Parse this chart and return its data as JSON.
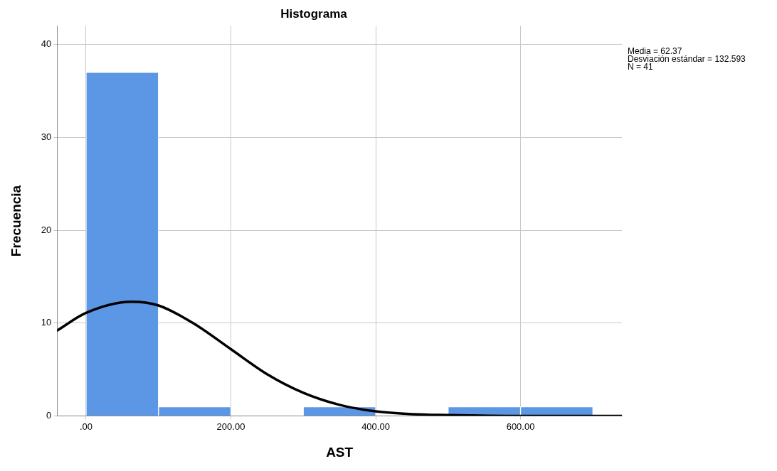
{
  "chart_data": {
    "type": "histogram",
    "title": "Histograma",
    "xlabel": "AST",
    "ylabel": "Frecuencia",
    "bins": [
      0,
      100,
      200,
      300,
      400,
      500,
      600,
      700
    ],
    "values": [
      37,
      1,
      0,
      1,
      0,
      1,
      1
    ],
    "color": "#5b97e5",
    "series": [
      {
        "type": "line",
        "color": "#000000",
        "x": [
          -40,
          0,
          62.37,
          100,
          150,
          200,
          250,
          300,
          350,
          400,
          450,
          500,
          600,
          740
        ],
        "values": [
          9.2,
          11.1,
          12.3,
          11.9,
          9.9,
          7.2,
          4.5,
          2.5,
          1.2,
          0.5,
          0.2,
          0.1,
          0,
          0
        ]
      }
    ],
    "xlim": [
      -40,
      740
    ],
    "xticks": [
      {
        "value": 0,
        "label": ".00"
      },
      {
        "value": 200,
        "label": "200.00"
      },
      {
        "value": 400,
        "label": "400.00"
      },
      {
        "value": 600,
        "label": "600.00"
      }
    ],
    "ylim": [
      0,
      42
    ],
    "yticks": [
      0,
      10,
      20,
      30,
      40
    ],
    "grid": true,
    "legend": false,
    "marker": "none",
    "annotations": [
      "Media = 62.37",
      "Desviación estándar = 132.593",
      "N = 41"
    ]
  }
}
